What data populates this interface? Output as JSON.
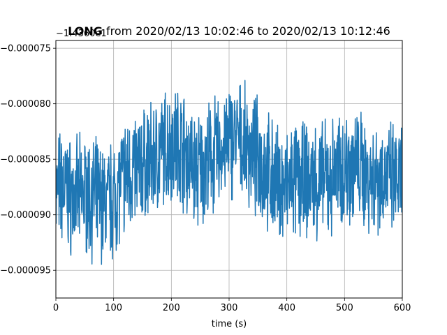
{
  "chart_data": {
    "type": "line",
    "title_bold": "LONG",
    "title_rest": " from 2020/02/13 10:02:46 to 2020/02/13 10:12:46",
    "xlabel": "time (s)",
    "ylabel": "",
    "y_offset_label": "−1.4360e1",
    "xlim": [
      0,
      600
    ],
    "ylim": [
      -9.75e-05,
      -7.43e-05
    ],
    "xticks": [
      0,
      100,
      200,
      300,
      400,
      500,
      600
    ],
    "xtick_labels": [
      "0",
      "100",
      "200",
      "300",
      "400",
      "500",
      "600"
    ],
    "yticks": [
      -9.5e-05,
      -9e-05,
      -8.5e-05,
      -8e-05,
      -7.5e-05
    ],
    "ytick_labels": [
      "−0.000095",
      "−0.000090",
      "−0.000085",
      "−0.000080",
      "−0.000075"
    ],
    "grid": true,
    "line_color": "#1f77b4",
    "series": [
      {
        "x": [
          0,
          10,
          20,
          30,
          40,
          50,
          60,
          70,
          80,
          90,
          100,
          110,
          120,
          130,
          140,
          150,
          160,
          170,
          180,
          190,
          200,
          210,
          220,
          230,
          240,
          250,
          260,
          270,
          280,
          290,
          300,
          310,
          320,
          330,
          340,
          350,
          360,
          370,
          380,
          390,
          400,
          410,
          420,
          430,
          440,
          450,
          460,
          470,
          480,
          490,
          500,
          510,
          520,
          530,
          540,
          550,
          560,
          570,
          580,
          590,
          600
        ],
        "y": [
          -8.8e-05,
          -8.75e-05,
          -8.8e-05,
          -8.85e-05,
          -8.85e-05,
          -8.8e-05,
          -8.85e-05,
          -8.85e-05,
          -8.9e-05,
          -8.9e-05,
          -8.85e-05,
          -8.75e-05,
          -8.65e-05,
          -8.6e-05,
          -8.6e-05,
          -8.55e-05,
          -8.55e-05,
          -8.5e-05,
          -8.45e-05,
          -8.4e-05,
          -8.35e-05,
          -8.35e-05,
          -8.4e-05,
          -8.5e-05,
          -8.6e-05,
          -8.6e-05,
          -8.55e-05,
          -8.5e-05,
          -8.45e-05,
          -8.4e-05,
          -8.35e-05,
          -8.3e-05,
          -8.35e-05,
          -8.4e-05,
          -8.45e-05,
          -8.5e-05,
          -8.55e-05,
          -8.65e-05,
          -8.7e-05,
          -8.75e-05,
          -8.75e-05,
          -8.7e-05,
          -8.7e-05,
          -8.7e-05,
          -8.7e-05,
          -8.7e-05,
          -8.7e-05,
          -8.7e-05,
          -8.65e-05,
          -8.6e-05,
          -8.6e-05,
          -8.55e-05,
          -8.55e-05,
          -8.6e-05,
          -8.65e-05,
          -8.65e-05,
          -8.65e-05,
          -8.65e-05,
          -8.7e-05,
          -8.7e-05,
          -8.7e-05
        ]
      }
    ]
  }
}
